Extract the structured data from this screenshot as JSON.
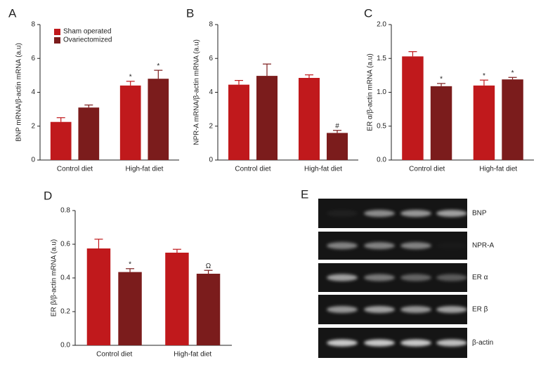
{
  "chart_data": [
    {
      "type": "bar",
      "panel": "A",
      "ylabel": "BNP mRNA/β-actin mRNA (a.u)",
      "categories": [
        "Control diet",
        "High-fat diet"
      ],
      "ylim": [
        0,
        8
      ],
      "yticks": [
        0,
        2,
        4,
        6,
        8
      ],
      "series": [
        {
          "name": "Sham operated",
          "color": "#c0191c",
          "values": [
            2.25,
            4.4
          ],
          "errors": [
            0.25,
            0.25
          ],
          "markers": [
            null,
            "*"
          ]
        },
        {
          "name": "Ovariectomized",
          "color": "#7b1c1c",
          "values": [
            3.1,
            4.8
          ],
          "errors": [
            0.15,
            0.5
          ],
          "markers": [
            null,
            "*"
          ]
        }
      ]
    },
    {
      "type": "bar",
      "panel": "B",
      "ylabel": "NPR-A mRNA/β-actin mRNA (a.u)",
      "categories": [
        "Control diet",
        "High-fat diet"
      ],
      "ylim": [
        0,
        8
      ],
      "yticks": [
        0,
        2,
        4,
        6,
        8
      ],
      "series": [
        {
          "color": "#c0191c",
          "values": [
            4.45,
            4.85
          ],
          "errors": [
            0.25,
            0.18
          ],
          "markers": [
            null,
            null
          ]
        },
        {
          "color": "#7b1c1c",
          "values": [
            4.97,
            1.6
          ],
          "errors": [
            0.7,
            0.15
          ],
          "markers": [
            null,
            "#"
          ]
        }
      ]
    },
    {
      "type": "bar",
      "panel": "C",
      "ylabel": "ER α/β-actin mRNA (a.u)",
      "categories": [
        "Control diet",
        "High-fat diet"
      ],
      "ylim": [
        0,
        2
      ],
      "yticks": [
        {
          "value": 0,
          "label": "0.0"
        },
        0.5,
        {
          "value": 1,
          "label": "1.0"
        },
        1.5,
        {
          "value": 2,
          "label": "2.0"
        }
      ],
      "series": [
        {
          "color": "#c0191c",
          "values": [
            1.53,
            1.1
          ],
          "errors": [
            0.07,
            0.08
          ],
          "markers": [
            null,
            "*"
          ]
        },
        {
          "color": "#7b1c1c",
          "values": [
            1.09,
            1.19
          ],
          "errors": [
            0.04,
            0.03
          ],
          "markers": [
            "*",
            "*"
          ]
        }
      ]
    },
    {
      "type": "bar",
      "panel": "D",
      "ylabel": "ER β/β-actin mRNA (a.u)",
      "categories": [
        "Control diet",
        "High-fat diet"
      ],
      "ylim": [
        0,
        0.8
      ],
      "yticks": [
        {
          "value": 0,
          "label": "0.0"
        },
        0.2,
        0.4,
        0.6,
        0.8
      ],
      "series": [
        {
          "color": "#c0191c",
          "values": [
            0.575,
            0.55
          ],
          "errors": [
            0.055,
            0.02
          ],
          "markers": [
            null,
            null
          ]
        },
        {
          "color": "#7b1c1c",
          "values": [
            0.435,
            0.425
          ],
          "errors": [
            0.02,
            0.02
          ],
          "markers": [
            "*",
            "Ω"
          ]
        }
      ]
    }
  ],
  "gel": {
    "panel": "E",
    "labels": [
      "BNP",
      "NPR-A",
      "ER α",
      "ER β",
      "β-actin"
    ]
  }
}
